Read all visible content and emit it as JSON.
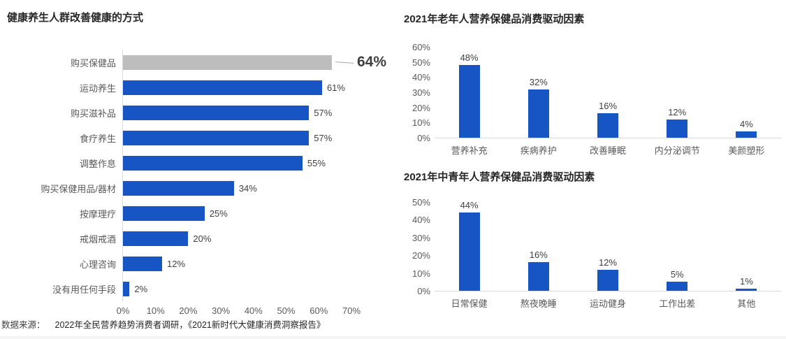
{
  "colors": {
    "bar_blue": "#1855c4",
    "bar_gray": "#bdbdbd",
    "title_text": "#262626",
    "axis_text": "#595959",
    "value_text": "#404040",
    "axis_line": "#d9d9d9",
    "callout_line": "#a6a6a6",
    "bottom_strip": "#f4f4f4"
  },
  "footer": {
    "label": "数据来源：",
    "text": "2022年全民营养趋势消费者调研，《2021新时代大健康消费洞察报告》"
  },
  "chart_data": [
    {
      "type": "bar",
      "orientation": "horizontal",
      "title": "健康养生人群改善健康的方式",
      "categories": [
        "购买保健品",
        "运动养生",
        "购买滋补品",
        "食疗养生",
        "调整作息",
        "购买保健用品/器材",
        "按摩理疗",
        "戒烟戒酒",
        "心理咨询",
        "没有用任何手段"
      ],
      "values": [
        64,
        61,
        57,
        57,
        55,
        34,
        25,
        20,
        12,
        2
      ],
      "value_labels": [
        "64%",
        "61%",
        "57%",
        "57%",
        "55%",
        "34%",
        "25%",
        "20%",
        "12%",
        "2%"
      ],
      "highlight_index": 0,
      "highlight_note": "gray bar with callout line and large bold 64% label",
      "x_ticks": [
        "0%",
        "10%",
        "20%",
        "30%",
        "40%",
        "50%",
        "60%",
        "70%"
      ],
      "xlim": [
        0,
        70
      ],
      "grid": false
    },
    {
      "type": "bar",
      "orientation": "vertical",
      "title": "2021年老年人营养保健品消费驱动因素",
      "categories": [
        "营养补充",
        "疾病养护",
        "改善睡眠",
        "内分泌调节",
        "美颜塑形"
      ],
      "values": [
        48,
        32,
        16,
        12,
        4
      ],
      "value_labels": [
        "48%",
        "32%",
        "16%",
        "12%",
        "4%"
      ],
      "y_ticks": [
        "60%",
        "50%",
        "40%",
        "30%",
        "20%",
        "10%",
        "0%"
      ],
      "ylim": [
        0,
        60
      ],
      "grid": false
    },
    {
      "type": "bar",
      "orientation": "vertical",
      "title": "2021年中青年人营养保健品消费驱动因素",
      "categories": [
        "日常保健",
        "熬夜晚睡",
        "运动健身",
        "工作出差",
        "其他"
      ],
      "values": [
        44,
        16,
        12,
        5,
        1
      ],
      "value_labels": [
        "44%",
        "16%",
        "12%",
        "5%",
        "1%"
      ],
      "y_ticks": [
        "50%",
        "40%",
        "30%",
        "20%",
        "10%",
        "0%"
      ],
      "ylim": [
        0,
        50
      ],
      "grid": false
    }
  ]
}
